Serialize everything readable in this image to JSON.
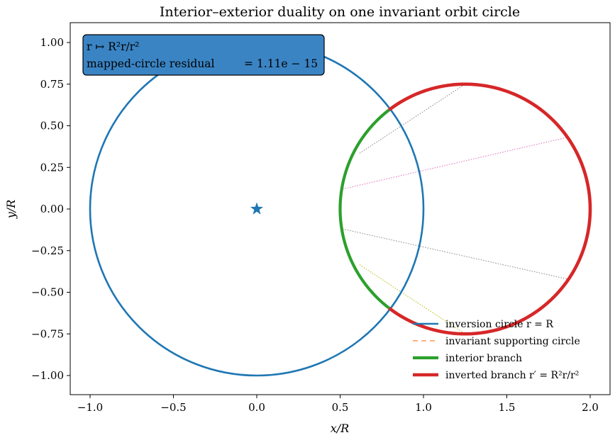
{
  "chart_data": {
    "type": "line",
    "title": "Interior–exterior duality on one invariant orbit circle",
    "xlabel": "x/R",
    "ylabel": "y/R",
    "xlim": [
      -1.1,
      2.13
    ],
    "ylim": [
      -1.12,
      1.12
    ],
    "aspect": "equal",
    "grid": false,
    "x_ticks": [
      "-1.0",
      "-0.5",
      "0.0",
      "0.5",
      "1.0",
      "1.5",
      "2.0"
    ],
    "x_tick_values": [
      -1.0,
      -0.5,
      0.0,
      0.5,
      1.0,
      1.5,
      2.0
    ],
    "y_ticks": [
      "1.00",
      "0.75",
      "0.50",
      "0.25",
      "0.00",
      "-0.25",
      "-0.50",
      "-0.75",
      "-1.00"
    ],
    "y_tick_values": [
      1.0,
      0.75,
      0.5,
      0.25,
      0.0,
      -0.25,
      -0.5,
      -0.75,
      -1.0
    ],
    "series": [
      {
        "name": "inversion circle r = R",
        "kind": "circle",
        "cx": 0.0,
        "cy": 0.0,
        "r": 1.0,
        "color": "#1f77b4",
        "style": "solid"
      },
      {
        "name": "invariant supporting circle",
        "kind": "circle",
        "cx": 1.25,
        "cy": 0.0,
        "r": 0.75,
        "color": "#ffb380",
        "style": "dashed"
      },
      {
        "name": "interior branch",
        "kind": "arc",
        "cx": 1.25,
        "cy": 0.0,
        "r": 0.75,
        "start_deg": 127.5,
        "end_deg": 232.5,
        "color": "#2ca02c",
        "style": "solid"
      },
      {
        "name": "inverted branch r′ = R²r/r²",
        "kind": "arc",
        "cx": 1.25,
        "cy": 0.0,
        "r": 0.75,
        "start_deg": -127.5,
        "end_deg": 127.5,
        "color": "#d62728",
        "style": "solid"
      }
    ],
    "center_marker": {
      "x": 0.0,
      "y": 0.0,
      "shape": "star",
      "color": "#1f77b4"
    },
    "correspondences": [
      {
        "from": [
          0.617,
          0.335
        ],
        "to": [
          1.25,
          0.75
        ],
        "color": "#9a8a8a"
      },
      {
        "from": [
          0.515,
          0.12
        ],
        "to": [
          1.86,
          0.43
        ],
        "color": "#e377c2"
      },
      {
        "from": [
          0.515,
          -0.12
        ],
        "to": [
          1.86,
          -0.42
        ],
        "color": "#9a8a8a"
      },
      {
        "from": [
          0.617,
          -0.335
        ],
        "to": [
          1.25,
          -0.75
        ],
        "color": "#bcbd22"
      }
    ],
    "annotation": {
      "line1": "r ↦ R²r/r²",
      "line2_label": "mapped-circle residual",
      "line2_value": "= 1.11e − 15"
    },
    "legend": {
      "placement": "bottom-right",
      "entries": [
        {
          "label": "inversion circle r = R",
          "color": "#1f77b4",
          "style": "solid"
        },
        {
          "label": "invariant supporting circle",
          "color": "#ffb380",
          "style": "dashed"
        },
        {
          "label": "interior branch",
          "color": "#2ca02c",
          "style": "solid"
        },
        {
          "label": "inverted branch r′ = R²r/r²",
          "color": "#d62728",
          "style": "solid"
        }
      ]
    }
  }
}
